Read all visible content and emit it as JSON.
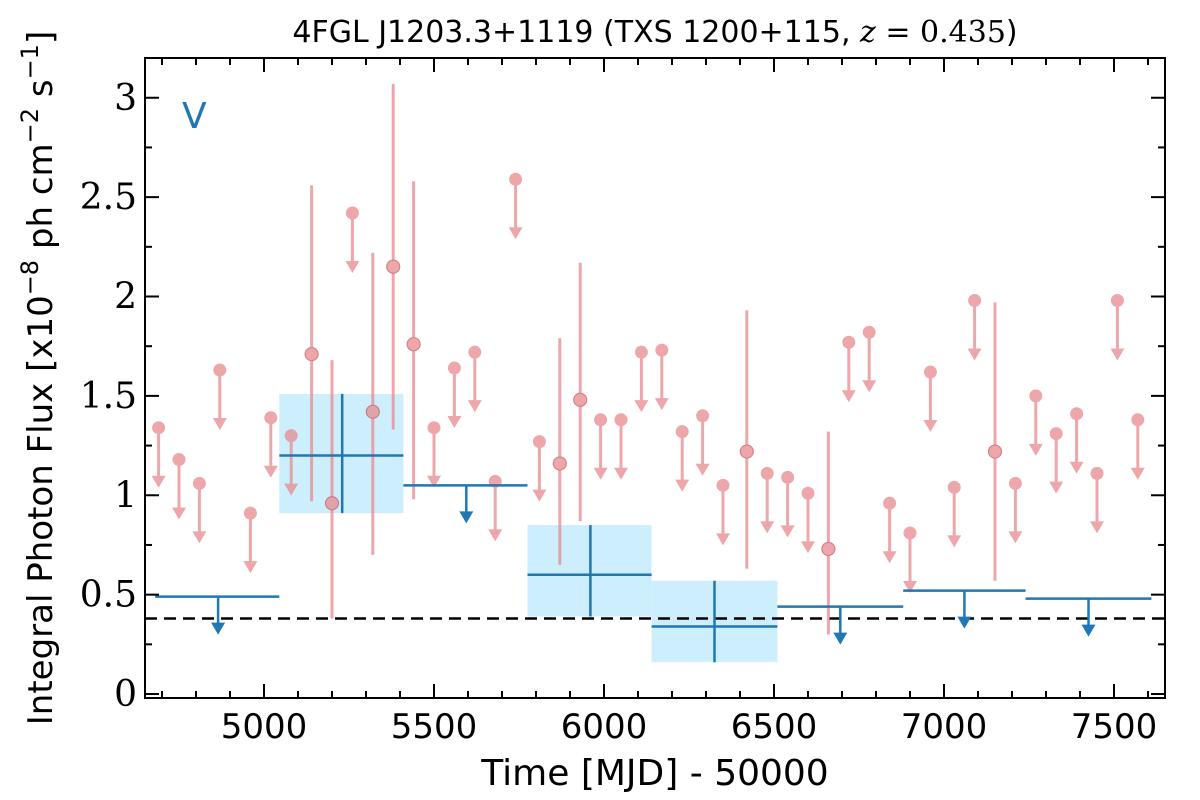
{
  "chart_data": {
    "type": "scatter",
    "title": "4FGL J1203.3+1119 (TXS 1200+115, z = 0.435)",
    "xlabel": "Time [MJD] - 50000",
    "ylabel": "Integral Photon Flux [x10^-8 ph cm^-2 s^-1]",
    "band_label": "V",
    "xlim": [
      4650,
      7650
    ],
    "ylim": [
      -0.02,
      3.2
    ],
    "x_ticks": [
      5000,
      5500,
      6000,
      6500,
      7000,
      7500
    ],
    "x_tick_labels": [
      "5000",
      "5500",
      "6000",
      "6500",
      "7000",
      "7500"
    ],
    "y_ticks": [
      0,
      0.5,
      1,
      1.5,
      2,
      2.5,
      3
    ],
    "y_tick_labels": [
      "0",
      "0.5",
      "1",
      "1.5",
      "2",
      "2.5",
      "3"
    ],
    "reference_level": 0.38,
    "colors": {
      "monthly": "#e88a8f",
      "yearly": "#1f77b4",
      "yearly_band": "#cdeefc",
      "reference": "#000000"
    },
    "series": [
      {
        "kind": "monthly_detections",
        "points": [
          {
            "x": 5140,
            "y": 1.71,
            "ylow": 0.97,
            "yhigh": 2.56
          },
          {
            "x": 5200,
            "y": 0.96,
            "ylow": 0.38,
            "yhigh": 1.68
          },
          {
            "x": 5320,
            "y": 1.42,
            "ylow": 0.7,
            "yhigh": 2.22
          },
          {
            "x": 5380,
            "y": 2.15,
            "ylow": 1.33,
            "yhigh": 3.07
          },
          {
            "x": 5440,
            "y": 1.76,
            "ylow": 0.98,
            "yhigh": 2.58
          },
          {
            "x": 5870,
            "y": 1.16,
            "ylow": 0.65,
            "yhigh": 1.79
          },
          {
            "x": 5930,
            "y": 1.48,
            "ylow": 0.87,
            "yhigh": 2.17
          },
          {
            "x": 6420,
            "y": 1.22,
            "ylow": 0.63,
            "yhigh": 1.93
          },
          {
            "x": 6660,
            "y": 0.73,
            "ylow": 0.3,
            "yhigh": 1.32
          },
          {
            "x": 7150,
            "y": 1.22,
            "ylow": 0.57,
            "yhigh": 1.97
          }
        ]
      },
      {
        "kind": "monthly_upper_limits",
        "points": [
          {
            "x": 4690,
            "y": 1.34
          },
          {
            "x": 4750,
            "y": 1.18
          },
          {
            "x": 4810,
            "y": 1.06
          },
          {
            "x": 4870,
            "y": 1.63
          },
          {
            "x": 4960,
            "y": 0.91
          },
          {
            "x": 5020,
            "y": 1.39
          },
          {
            "x": 5080,
            "y": 1.3
          },
          {
            "x": 5260,
            "y": 2.42
          },
          {
            "x": 5500,
            "y": 1.34
          },
          {
            "x": 5560,
            "y": 1.64
          },
          {
            "x": 5620,
            "y": 1.72
          },
          {
            "x": 5680,
            "y": 1.07
          },
          {
            "x": 5740,
            "y": 2.59
          },
          {
            "x": 5810,
            "y": 1.27
          },
          {
            "x": 5990,
            "y": 1.38
          },
          {
            "x": 6050,
            "y": 1.38
          },
          {
            "x": 6110,
            "y": 1.72
          },
          {
            "x": 6170,
            "y": 1.73
          },
          {
            "x": 6230,
            "y": 1.32
          },
          {
            "x": 6290,
            "y": 1.4
          },
          {
            "x": 6350,
            "y": 1.05
          },
          {
            "x": 6480,
            "y": 1.11
          },
          {
            "x": 6540,
            "y": 1.09
          },
          {
            "x": 6600,
            "y": 1.01
          },
          {
            "x": 6720,
            "y": 1.77
          },
          {
            "x": 6780,
            "y": 1.82
          },
          {
            "x": 6840,
            "y": 0.96
          },
          {
            "x": 6900,
            "y": 0.81
          },
          {
            "x": 6960,
            "y": 1.62
          },
          {
            "x": 7030,
            "y": 1.04
          },
          {
            "x": 7090,
            "y": 1.98
          },
          {
            "x": 7210,
            "y": 1.06
          },
          {
            "x": 7270,
            "y": 1.5
          },
          {
            "x": 7330,
            "y": 1.31
          },
          {
            "x": 7390,
            "y": 1.41
          },
          {
            "x": 7450,
            "y": 1.11
          },
          {
            "x": 7510,
            "y": 1.98
          },
          {
            "x": 7570,
            "y": 1.38
          }
        ]
      },
      {
        "kind": "yearly_detections",
        "points": [
          {
            "x": 5230,
            "xmin": 5045,
            "xmax": 5410,
            "y": 1.2,
            "ylow": 0.91,
            "yhigh": 1.51
          },
          {
            "x": 5960,
            "xmin": 5775,
            "xmax": 6140,
            "y": 0.6,
            "ylow": 0.39,
            "yhigh": 0.85
          },
          {
            "x": 6325,
            "xmin": 6140,
            "xmax": 6510,
            "y": 0.34,
            "ylow": 0.16,
            "yhigh": 0.57
          }
        ]
      },
      {
        "kind": "yearly_upper_limits",
        "points": [
          {
            "x": 4865,
            "xmin": 4680,
            "xmax": 5045,
            "y": 0.49
          },
          {
            "x": 5595,
            "xmin": 5410,
            "xmax": 5775,
            "y": 1.05
          },
          {
            "x": 6695,
            "xmin": 6510,
            "xmax": 6880,
            "y": 0.44
          },
          {
            "x": 7060,
            "xmin": 6880,
            "xmax": 7240,
            "y": 0.52
          },
          {
            "x": 7425,
            "xmin": 7240,
            "xmax": 7610,
            "y": 0.48
          }
        ]
      }
    ]
  }
}
